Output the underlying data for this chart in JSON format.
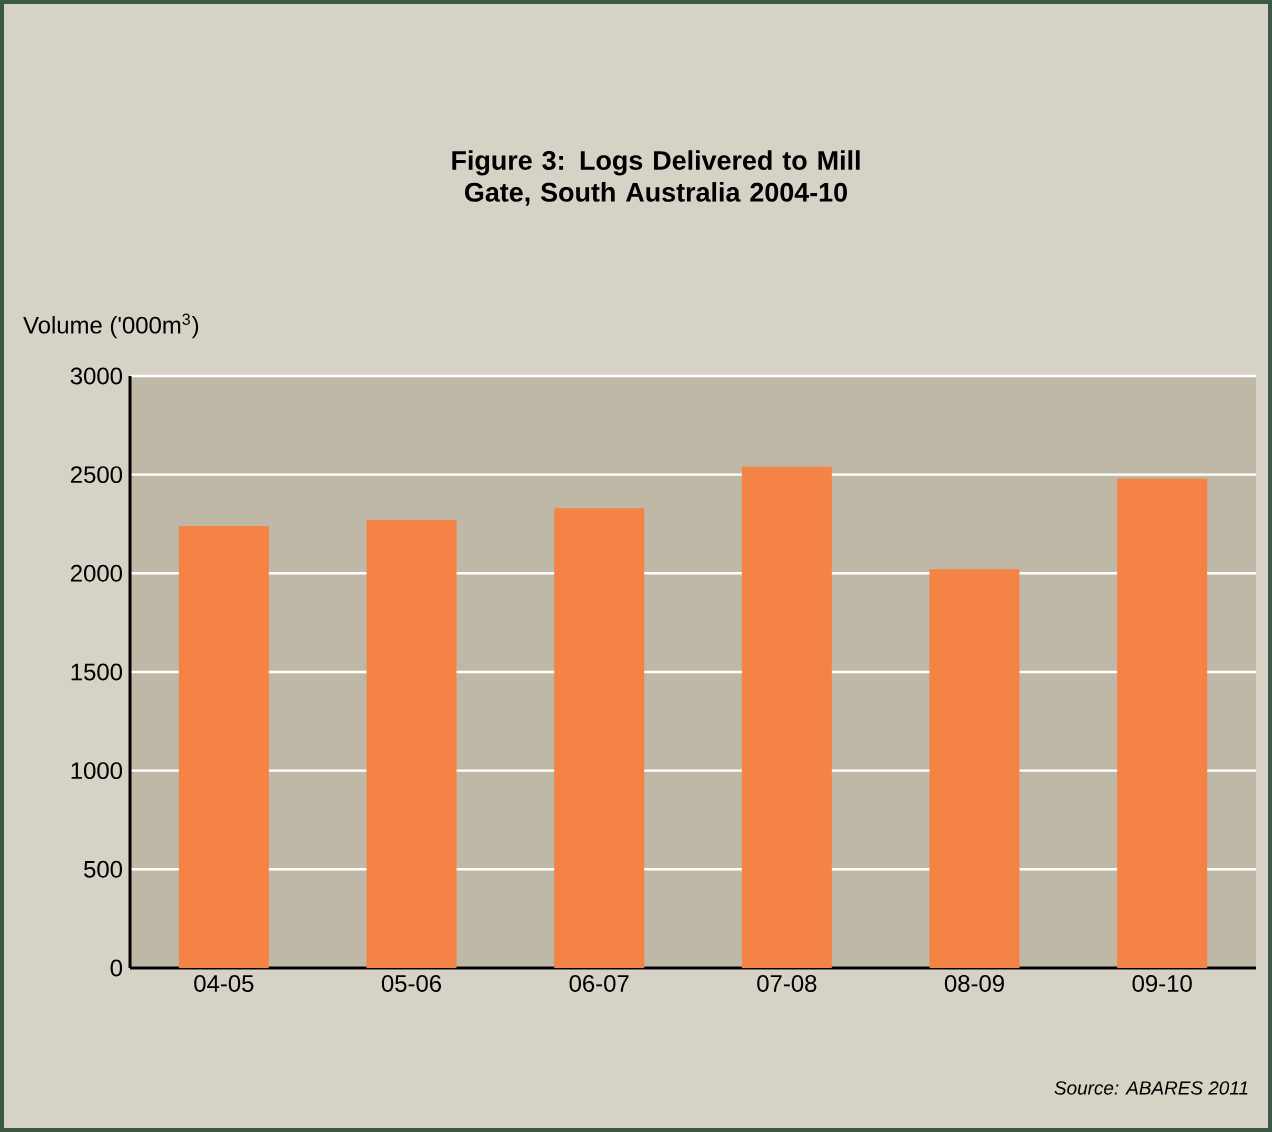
{
  "chart_data": {
    "type": "bar",
    "title": "Figure 3: Logs Delivered to Mill Gate, South Australia 2004-10",
    "ylabel": "Volume ('000m$^{3}$)",
    "categories": [
      "04-05",
      "05-06",
      "06-07",
      "07-08",
      "08-09",
      "09-10"
    ],
    "values": [
      2240,
      2270,
      2330,
      2540,
      2020,
      2480
    ],
    "color": "#f58345",
    "ylim": [
      0,
      3000
    ],
    "yticks": [
      0,
      500,
      1000,
      1500,
      2000,
      2500,
      3000
    ],
    "grid": "y",
    "annotations": [
      "Source: ABARES 2011"
    ]
  }
}
